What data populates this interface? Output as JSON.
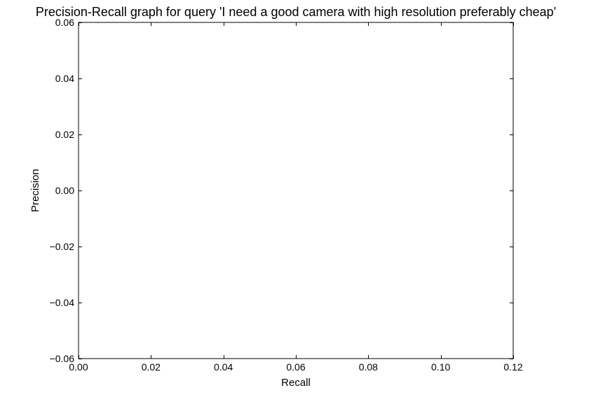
{
  "chart_data": {
    "type": "line",
    "title": "Precision-Recall graph for query 'I need a good camera with high resolution preferably cheap'",
    "xlabel": "Recall",
    "ylabel": "Precision",
    "xlim": [
      0.0,
      0.12
    ],
    "ylim": [
      -0.06,
      0.06
    ],
    "xticks": [
      0.0,
      0.02,
      0.04,
      0.06,
      0.08,
      0.1,
      0.12
    ],
    "xtick_labels": [
      "0.00",
      "0.02",
      "0.04",
      "0.06",
      "0.08",
      "0.10",
      "0.12"
    ],
    "yticks": [
      0.06,
      0.04,
      0.02,
      0.0,
      -0.02,
      -0.04,
      -0.06
    ],
    "ytick_labels": [
      "0.06",
      "0.04",
      "0.02",
      "0.00",
      "−0.02",
      "−0.04",
      "−0.06"
    ],
    "grid": false,
    "series": []
  }
}
